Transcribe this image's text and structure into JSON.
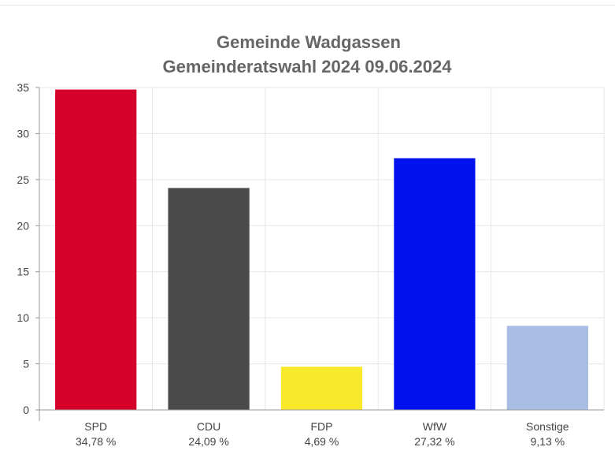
{
  "chart_data": {
    "type": "bar",
    "title": "Gemeinde Wadgassen",
    "subtitle": "Gemeinderatswahl 2024 09.06.2024",
    "categories": [
      "SPD",
      "CDU",
      "FDP",
      "WfW",
      "Sonstige"
    ],
    "values": [
      34.78,
      24.09,
      4.69,
      27.32,
      9.13
    ],
    "value_labels": [
      "34,78 %",
      "24,09 %",
      "4,69 %",
      "27,32 %",
      "9,13 %"
    ],
    "colors": [
      "#d50029",
      "#4a4a4a",
      "#f9e92b",
      "#0011ee",
      "#a9bde4"
    ],
    "xlabel": "",
    "ylabel": "",
    "ylim": [
      0,
      35
    ],
    "yticks": [
      0,
      5,
      10,
      15,
      20,
      25,
      30,
      35
    ],
    "grid": true,
    "legend": "none"
  }
}
